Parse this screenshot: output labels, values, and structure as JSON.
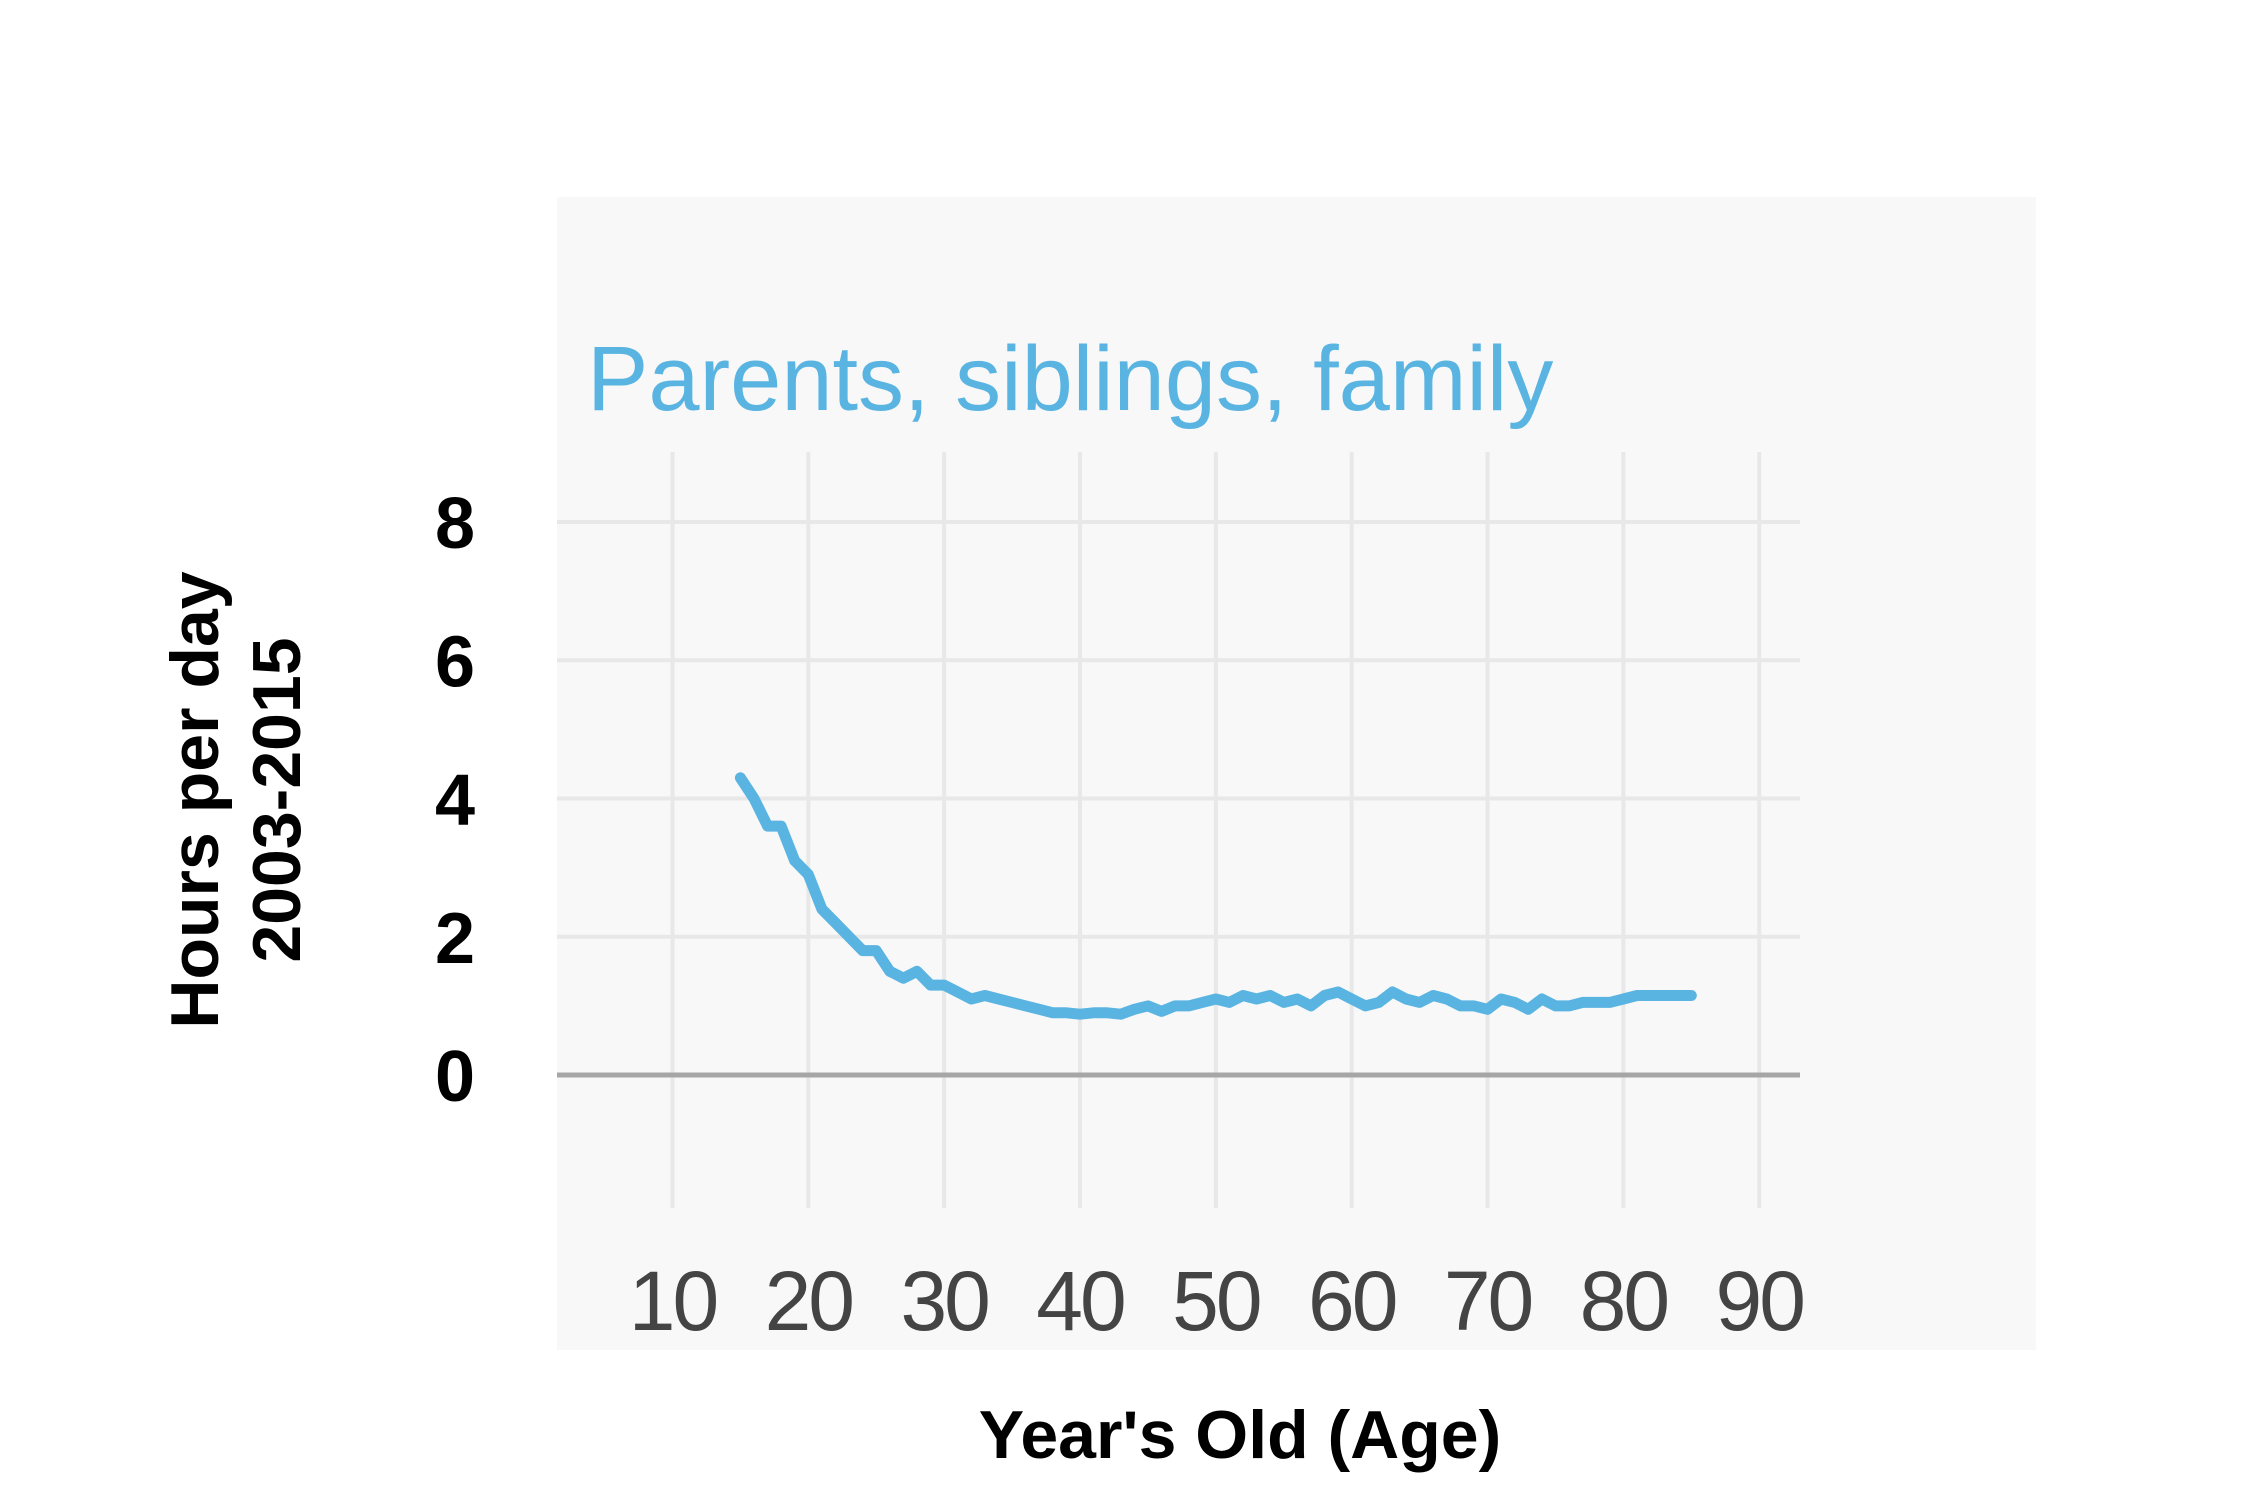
{
  "chart_data": {
    "type": "line",
    "title": "Parents, siblings, family",
    "xlabel": "Year's Old (Age)",
    "ylabel": [
      "Hours per day",
      "2003-2015"
    ],
    "xlim": [
      1.5,
      93
    ],
    "ylim": [
      0,
      8
    ],
    "x_ticks": [
      10,
      20,
      30,
      40,
      50,
      60,
      70,
      80,
      90
    ],
    "y_ticks": [
      0,
      2,
      4,
      6,
      8
    ],
    "grid": true,
    "colors": {
      "line": "#5ab4e2",
      "baseline": "#a6a6a6",
      "grid": "#e8e8e8",
      "panel": "#f8f8f8",
      "title": "#5ab4e2"
    },
    "series": [
      {
        "x": [
          15,
          16,
          17,
          18,
          19,
          20,
          21,
          22,
          23,
          24,
          25,
          26,
          27,
          28,
          29,
          30,
          31,
          32,
          33,
          34,
          35,
          36,
          37,
          38,
          39,
          40,
          41,
          42,
          43,
          44,
          45,
          46,
          47,
          48,
          49,
          50,
          51,
          52,
          53,
          54,
          55,
          56,
          57,
          58,
          59,
          60,
          61,
          62,
          63,
          64,
          65,
          66,
          67,
          68,
          69,
          70,
          71,
          72,
          73,
          74,
          75,
          76,
          77,
          78,
          79,
          80,
          81,
          82,
          83,
          84,
          85
        ],
        "values": [
          4.3,
          4.0,
          3.6,
          3.6,
          3.1,
          2.9,
          2.4,
          2.2,
          2.0,
          1.8,
          1.8,
          1.5,
          1.4,
          1.5,
          1.3,
          1.3,
          1.2,
          1.1,
          1.15,
          1.1,
          1.05,
          1.0,
          0.95,
          0.9,
          0.9,
          0.88,
          0.9,
          0.9,
          0.88,
          0.95,
          1.0,
          0.92,
          1.0,
          1.0,
          1.05,
          1.1,
          1.05,
          1.15,
          1.1,
          1.15,
          1.05,
          1.1,
          1.0,
          1.15,
          1.2,
          1.1,
          1.0,
          1.05,
          1.2,
          1.1,
          1.05,
          1.15,
          1.1,
          1.0,
          1.0,
          0.95,
          1.1,
          1.05,
          0.95,
          1.1,
          1.0,
          1.0,
          1.05,
          1.05,
          1.05,
          1.1,
          1.15,
          1.15,
          1.15,
          1.15,
          1.15
        ]
      }
    ]
  }
}
